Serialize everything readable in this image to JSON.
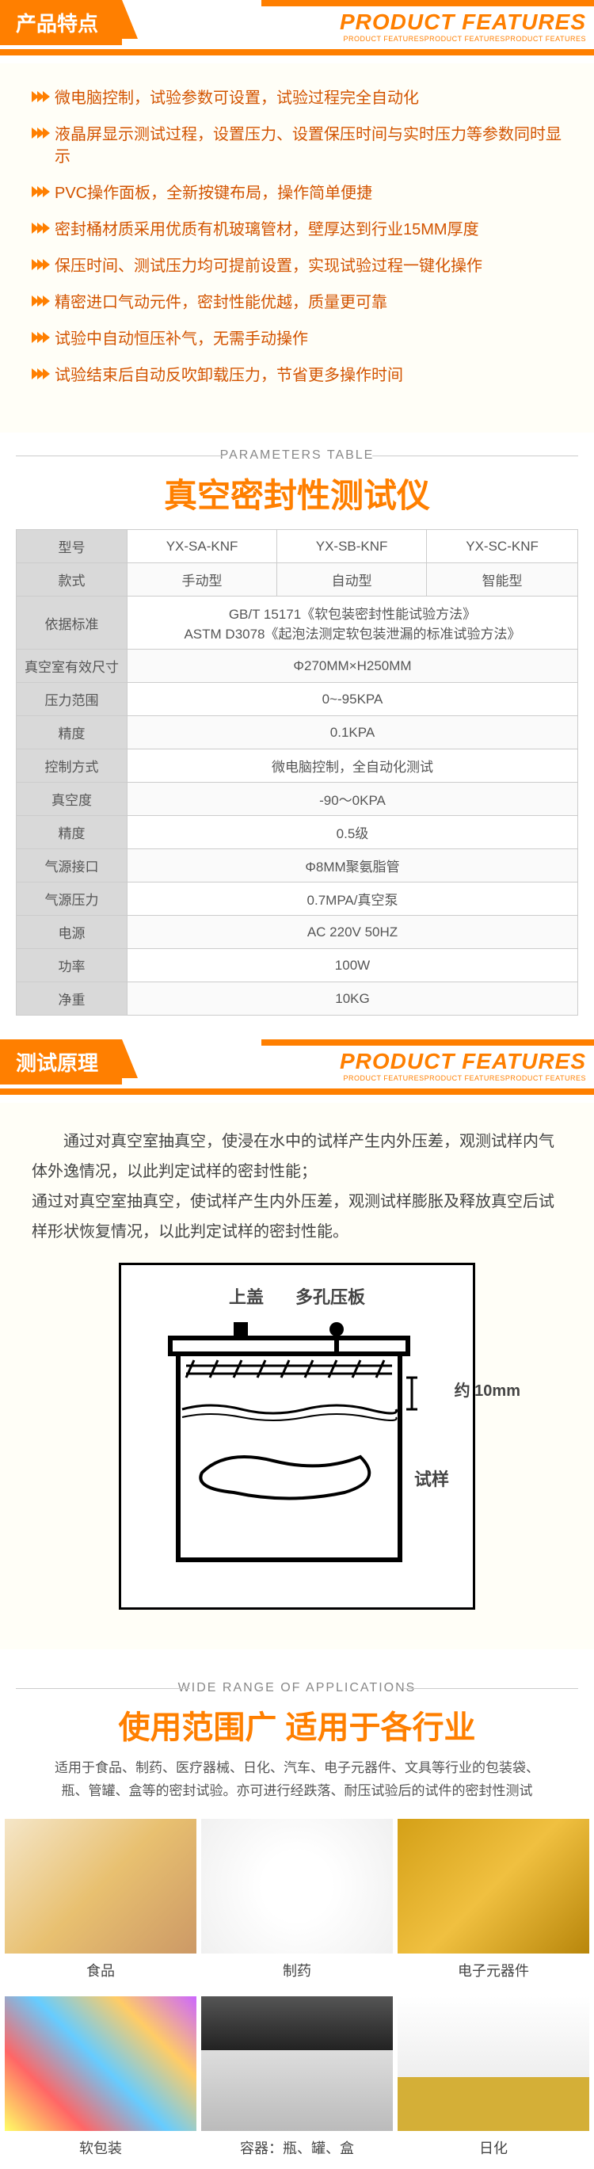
{
  "colors": {
    "accent": "#ff7f00",
    "feature_text": "#d35400",
    "header_gray": "#d9d9d9",
    "border": "#cccccc",
    "bg_cream": "#fffef7"
  },
  "header1": {
    "zh": "产品特点",
    "en_big": "PRODUCT FEATURES",
    "en_small": "PRODUCT FEATURESPRODUCT FEATURESPRODUCT FEATURES"
  },
  "features": [
    "微电脑控制，试验参数可设置，试验过程完全自动化",
    "液晶屏显示测试过程，设置压力、设置保压时间与实时压力等参数同时显示",
    "PVC操作面板，全新按键布局，操作简单便捷",
    "密封桶材质采用优质有机玻璃管材，壁厚达到行业15MM厚度",
    "保压时间、测试压力均可提前设置，实现试验过程一键化操作",
    "精密进口气动元件，密封性能优越，质量更可靠",
    "试验中自动恒压补气，无需手动操作",
    "试验结束后自动反吹卸载压力，节省更多操作时间"
  ],
  "params_label": "PARAMETERS TABLE",
  "params_title": "真空密封性测试仪",
  "table": {
    "row_model": {
      "h": "型号",
      "c": [
        "YX-SA-KNF",
        "YX-SB-KNF",
        "YX-SC-KNF"
      ]
    },
    "row_style": {
      "h": "款式",
      "c": [
        "手动型",
        "自动型",
        "智能型"
      ]
    },
    "row_std": {
      "h": "依据标准",
      "v": "GB/T 15171《软包装密封性能试验方法》\nASTM D3078《起泡法测定软包装泄漏的标准试验方法》"
    },
    "row_chamber": {
      "h": "真空室有效尺寸",
      "v": "Φ270MM×H250MM"
    },
    "row_prange": {
      "h": "压力范围",
      "v": "0~-95KPA"
    },
    "row_acc1": {
      "h": "精度",
      "v": "0.1KPA"
    },
    "row_ctrl": {
      "h": "控制方式",
      "v": "微电脑控制，全自动化测试"
    },
    "row_vac": {
      "h": "真空度",
      "v": "-90～0KPA"
    },
    "row_acc2": {
      "h": "精度",
      "v": "0.5级"
    },
    "row_port": {
      "h": "气源接口",
      "v": "Φ8MM聚氨脂管"
    },
    "row_airp": {
      "h": "气源压力",
      "v": "0.7MPA/真空泵"
    },
    "row_power": {
      "h": "电源",
      "v": "AC 220V 50HZ"
    },
    "row_watt": {
      "h": "功率",
      "v": "100W"
    },
    "row_weight": {
      "h": "净重",
      "v": "10KG"
    }
  },
  "header2": {
    "zh": "测试原理",
    "en_big": "PRODUCT FEATURES",
    "en_small": "PRODUCT FEATURESPRODUCT FEATURESPRODUCT FEATURES"
  },
  "principle": {
    "p1": "通过对真空室抽真空，使浸在水中的试样产生内外压差，观测试样内气体外逸情况，以此判定试样的密封性能；",
    "p2": "通过对真空室抽真空，使试样产生内外压差，观测试样膨胀及释放真空后试样形状恢复情况，以此判定试样的密封性能。"
  },
  "diagram": {
    "label_lid": "上盖",
    "label_plate": "多孔压板",
    "label_approx": "约 10mm",
    "label_sample": "试样"
  },
  "apps_label": "WIDE RANGE OF APPLICATIONS",
  "apps_title": "使用范围广 适用于各行业",
  "apps_desc": "适用于食品、制药、医疗器械、日化、汽车、电子元器件、文具等行业的包装袋、瓶、管罐、盒等的密封试验。亦可进行经跌落、耐压试验后的试件的密封性测试",
  "apps": [
    {
      "cap": "食品",
      "thumb_bg": "linear-gradient(135deg,#f5e6c8,#e8c070,#c96)"
    },
    {
      "cap": "制药",
      "thumb_bg": "radial-gradient(circle,#fff 30%,#f0f0f0),repeating-conic-gradient(#e74c3c 0 10deg,#3498db 10deg 20deg,#f1c40f 20deg 30deg,#2ecc71 30deg 40deg)"
    },
    {
      "cap": "电子元器件",
      "thumb_bg": "linear-gradient(135deg,#d4a017,#f0c040,#b8860b)"
    },
    {
      "cap": "软包装",
      "thumb_bg": "linear-gradient(45deg,#ff6,#f66,#6cf,#fc6,#c6f)"
    },
    {
      "cap": "容器：瓶、罐、盒",
      "thumb_bg": "linear-gradient(#555,#222 40%,#ddd 40%,#bbb)"
    },
    {
      "cap": "日化",
      "thumb_bg": "linear-gradient(#fff,#eee 60%,#d4af37 60%,#d4af37)"
    }
  ]
}
